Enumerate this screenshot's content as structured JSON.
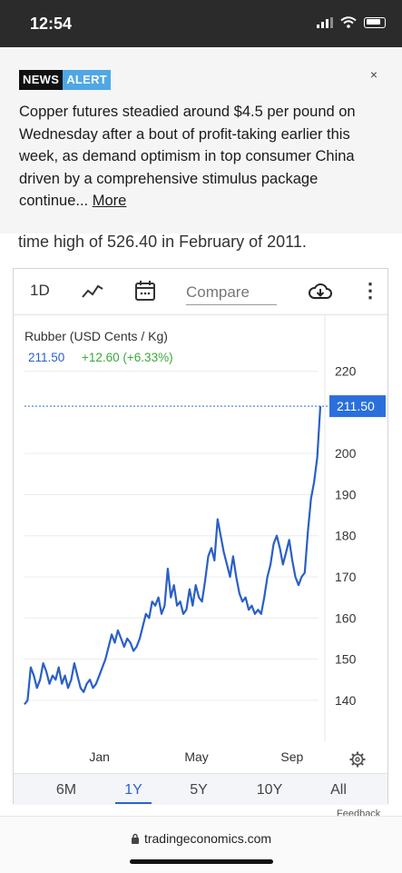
{
  "status_bar": {
    "time": "12:54"
  },
  "alert": {
    "badge_news": "NEWS",
    "badge_alert": "ALERT",
    "close": "×",
    "text": "Copper futures steadied around $4.5 per pound on Wednesday after a bout of profit-taking earlier this week, as demand optimism in top consumer China driven by a comprehensive stimulus package continue... ",
    "more": "More"
  },
  "article_snippet": "time high of 526.40 in February of 2011.",
  "toolbar": {
    "interval": "1D",
    "compare_placeholder": "Compare",
    "more": "⋮"
  },
  "colors": {
    "series": "#2a5fc7",
    "up": "#3aa83a",
    "price_label_bg": "#2a6fdb"
  },
  "chart_data": {
    "type": "line",
    "title": "Rubber (USD Cents / Kg)",
    "last_value": "211.50",
    "change": "+12.60 (+6.33%)",
    "price_label": "211.50",
    "ylim": [
      134,
      225
    ],
    "yticks": [
      220,
      200,
      190,
      180,
      170,
      160,
      150,
      140
    ],
    "xlabels": [
      {
        "label": "Jan",
        "t": 0.255
      },
      {
        "label": "May",
        "t": 0.585
      },
      {
        "label": "Sep",
        "t": 0.91
      }
    ],
    "series": [
      {
        "values": [
          139,
          140,
          148,
          146,
          143,
          145,
          149,
          147,
          144,
          146,
          145,
          148,
          144,
          146,
          143,
          145,
          149,
          146,
          143,
          142,
          144,
          145,
          143,
          144,
          146,
          148,
          150,
          153,
          156,
          154,
          157,
          155,
          153,
          155,
          154,
          152,
          153,
          155,
          158,
          161,
          160,
          164,
          163,
          165,
          161,
          163,
          172,
          165,
          168,
          163,
          164,
          161,
          162,
          167,
          163,
          168,
          165,
          164,
          169,
          175,
          177,
          174,
          184,
          180,
          176,
          173,
          170,
          175,
          170,
          166,
          164,
          165,
          162,
          163,
          161,
          162,
          161,
          165,
          170,
          173,
          178,
          180,
          177,
          173,
          176,
          179,
          174,
          170,
          168,
          170,
          171,
          181,
          189,
          193,
          199,
          211.5
        ]
      }
    ]
  },
  "range_buttons": [
    {
      "label": "6M",
      "active": false
    },
    {
      "label": "1Y",
      "active": true
    },
    {
      "label": "5Y",
      "active": false
    },
    {
      "label": "10Y",
      "active": false
    },
    {
      "label": "All",
      "active": false
    }
  ],
  "feedback": "Feedback",
  "url": "tradingeconomics.com"
}
